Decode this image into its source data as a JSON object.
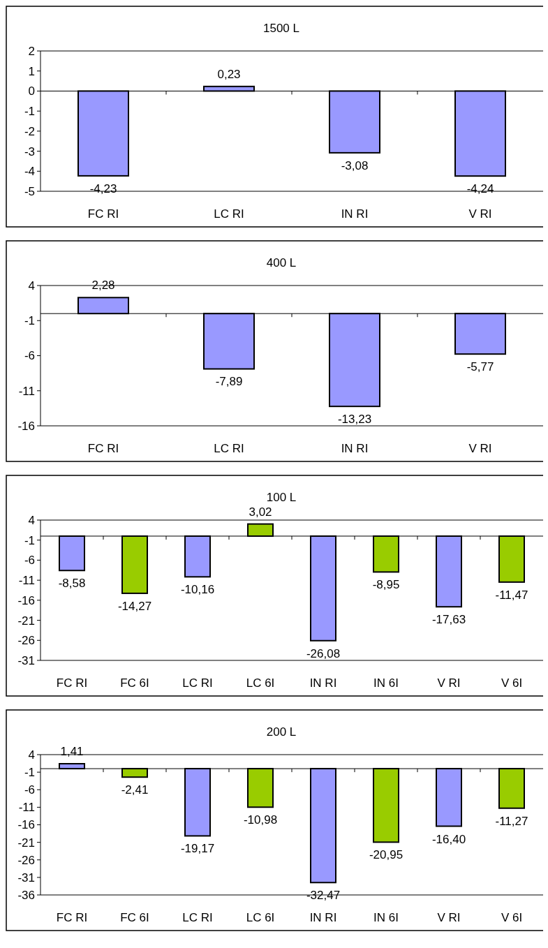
{
  "chart_data": [
    {
      "type": "bar",
      "title": "1500 L",
      "categories": [
        "FC RI",
        "LC RI",
        "IN RI",
        "V RI"
      ],
      "values": [
        -4.23,
        0.23,
        -3.08,
        -4.24
      ],
      "color": "#9999ff",
      "value_labels": [
        "-4,23",
        "0,23",
        "-3,08",
        "-4,24"
      ],
      "ylim": [
        -5,
        2
      ],
      "yticks": [
        2,
        1,
        0,
        -1,
        -2,
        -3,
        -4,
        -5
      ]
    },
    {
      "type": "bar",
      "title": "400 L",
      "categories": [
        "FC RI",
        "LC RI",
        "IN RI",
        "V RI"
      ],
      "values": [
        2.28,
        -7.89,
        -13.23,
        -5.77
      ],
      "color": "#9999ff",
      "value_labels": [
        "2,28",
        "-7,89",
        "-13,23",
        "-5,77"
      ],
      "ylim": [
        -16,
        4
      ],
      "yticks": [
        4,
        -1,
        -6,
        -11,
        -16
      ]
    },
    {
      "type": "bar",
      "title": "100 L",
      "categories": [
        "FC RI",
        "FC 6I",
        "LC RI",
        "LC 6I",
        "IN RI",
        "IN 6I",
        "V RI",
        "V 6I"
      ],
      "values": [
        -8.58,
        -14.27,
        -10.16,
        3.02,
        -26.08,
        -8.95,
        -17.63,
        -11.47
      ],
      "colors": [
        "#9999ff",
        "#99cc00",
        "#9999ff",
        "#99cc00",
        "#9999ff",
        "#99cc00",
        "#9999ff",
        "#99cc00"
      ],
      "value_labels": [
        "-8,58",
        "-14,27",
        "-10,16",
        "3,02",
        "-26,08",
        "-8,95",
        "-17,63",
        "-11,47"
      ],
      "ylim": [
        -31,
        4
      ],
      "yticks": [
        4,
        -1,
        -6,
        -11,
        -16,
        -21,
        -26,
        -31
      ]
    },
    {
      "type": "bar",
      "title": "200 L",
      "categories": [
        "FC RI",
        "FC 6I",
        "LC RI",
        "LC 6I",
        "IN RI",
        "IN 6I",
        "V RI",
        "V 6I"
      ],
      "values": [
        1.41,
        -2.41,
        -19.17,
        -10.98,
        -32.47,
        -20.95,
        -16.4,
        -11.27
      ],
      "colors": [
        "#9999ff",
        "#99cc00",
        "#9999ff",
        "#99cc00",
        "#9999ff",
        "#99cc00",
        "#9999ff",
        "#99cc00"
      ],
      "value_labels": [
        "1,41",
        "-2,41",
        "-19,17",
        "-10,98",
        "-32,47",
        "-20,95",
        "-16,40",
        "-11,27"
      ],
      "ylim": [
        -36,
        4
      ],
      "yticks": [
        4,
        -1,
        -6,
        -11,
        -16,
        -21,
        -26,
        -31,
        -36
      ]
    }
  ]
}
